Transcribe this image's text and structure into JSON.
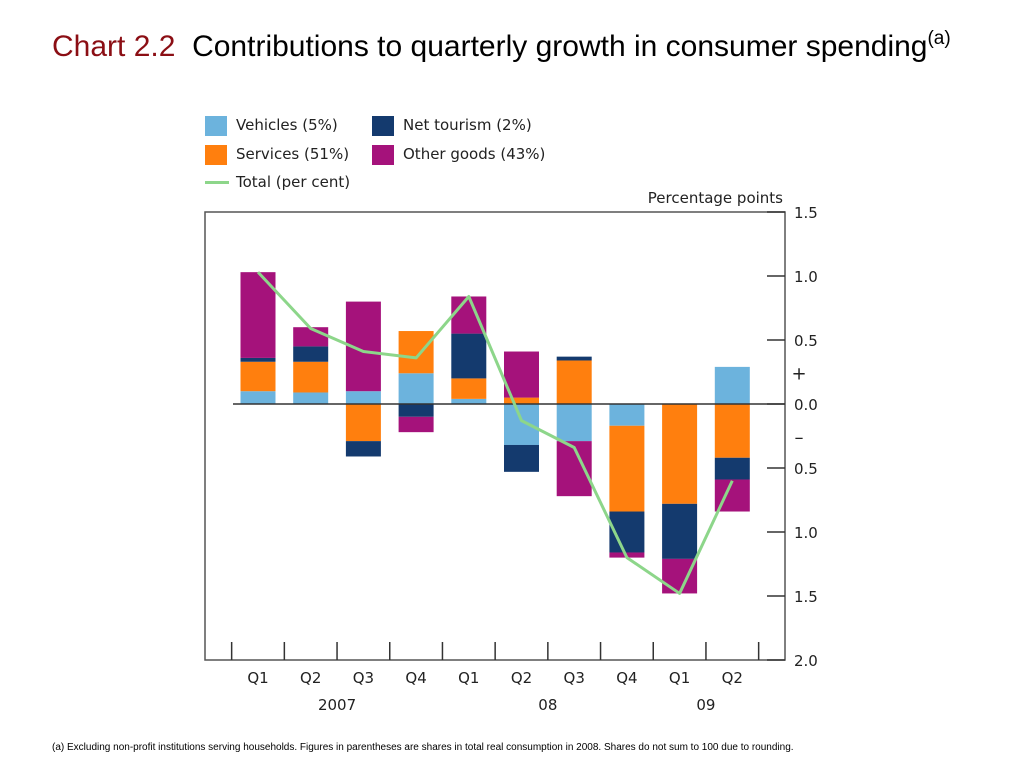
{
  "title": {
    "number": "Chart 2.2",
    "text": "Contributions to quarterly growth in consumer spending",
    "note_marker": "(a)"
  },
  "footnote": "(a)  Excluding non-profit institutions serving households.  Figures in parentheses are shares in total real consumption in 2008.  Shares do not sum to 100 due to rounding.",
  "legend": [
    {
      "label": "Vehicles (5%)",
      "color": "#6cb3dd",
      "kind": "box"
    },
    {
      "label": "Net tourism (2%)",
      "color": "#143a6e",
      "kind": "box"
    },
    {
      "label": "Services (51%)",
      "color": "#ff7f0e",
      "kind": "box"
    },
    {
      "label": "Other goods (43%)",
      "color": "#a5127b",
      "kind": "box"
    },
    {
      "label": "Total (per cent)",
      "color": "#8dd68a",
      "kind": "line"
    }
  ],
  "chart_data": {
    "type": "bar",
    "stacked": true,
    "ylabel": "Percentage points",
    "ylim": [
      -2.0,
      1.5
    ],
    "y_ticks": [
      {
        "value": 1.5,
        "label": "1.5"
      },
      {
        "value": 1.0,
        "label": "1.0"
      },
      {
        "value": 0.5,
        "label": "0.5"
      },
      {
        "value": 0.0,
        "label": "0.0"
      },
      {
        "value": -0.5,
        "label": "0.5"
      },
      {
        "value": -1.0,
        "label": "1.0"
      },
      {
        "value": -1.5,
        "label": "1.5"
      },
      {
        "value": -2.0,
        "label": "2.0"
      }
    ],
    "sign_labels": {
      "plus": "+",
      "minus": "–"
    },
    "categories": [
      "Q1",
      "Q2",
      "Q3",
      "Q4",
      "Q1",
      "Q2",
      "Q3",
      "Q4",
      "Q1",
      "Q2"
    ],
    "year_labels": [
      {
        "label": "2007",
        "center_index": 1.5
      },
      {
        "label": "08",
        "center_index": 5.5
      },
      {
        "label": "09",
        "center_index": 8.5
      }
    ],
    "series": [
      {
        "name": "Vehicles (5%)",
        "color": "#6cb3dd",
        "values": [
          0.1,
          0.09,
          0.1,
          0.24,
          0.04,
          -0.32,
          -0.29,
          -0.17,
          0.0,
          0.29
        ]
      },
      {
        "name": "Services (51%)",
        "color": "#ff7f0e",
        "values": [
          0.23,
          0.24,
          -0.29,
          0.33,
          0.16,
          0.05,
          0.34,
          -0.67,
          -0.78,
          -0.42
        ]
      },
      {
        "name": "Net tourism (2%)",
        "color": "#143a6e",
        "values": [
          0.03,
          0.12,
          -0.12,
          -0.1,
          0.35,
          -0.21,
          0.03,
          -0.32,
          -0.43,
          -0.17
        ]
      },
      {
        "name": "Other goods (43%)",
        "color": "#a5127b",
        "values": [
          0.67,
          0.15,
          0.7,
          -0.12,
          0.29,
          0.36,
          -0.43,
          -0.04,
          -0.27,
          -0.25
        ]
      }
    ],
    "total": {
      "name": "Total (per cent)",
      "color": "#8dd68a",
      "values": [
        1.03,
        0.59,
        0.41,
        0.36,
        0.84,
        -0.13,
        -0.34,
        -1.2,
        -1.48,
        -0.6
      ]
    }
  }
}
